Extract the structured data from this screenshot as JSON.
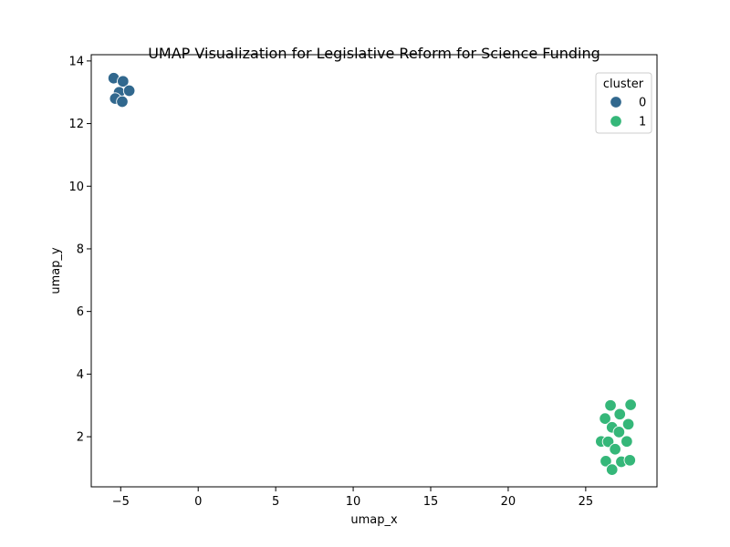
{
  "chart_data": {
    "type": "scatter",
    "title": "UMAP Visualization for Legislative Reform for Science Funding",
    "xlabel": "umap_x",
    "ylabel": "umap_y",
    "xlim": [
      -6.9,
      29.6
    ],
    "ylim": [
      0.4,
      14.2
    ],
    "xticks": [
      -5,
      0,
      5,
      10,
      15,
      20,
      25
    ],
    "xtick_labels": [
      "−5",
      "0",
      "5",
      "10",
      "15",
      "20",
      "25"
    ],
    "yticks": [
      2,
      4,
      6,
      8,
      10,
      12,
      14
    ],
    "ytick_labels": [
      "2",
      "4",
      "6",
      "8",
      "10",
      "12",
      "14"
    ],
    "grid": false,
    "legend": {
      "title": "cluster",
      "placement": "top-right",
      "entries": [
        {
          "label": "0",
          "color": "#31688e"
        },
        {
          "label": "1",
          "color": "#35b779"
        }
      ]
    },
    "series": [
      {
        "name": "0",
        "color": "#31688e",
        "points": [
          {
            "x": -5.45,
            "y": 13.45
          },
          {
            "x": -4.85,
            "y": 13.35
          },
          {
            "x": -5.1,
            "y": 13.0
          },
          {
            "x": -4.45,
            "y": 13.05
          },
          {
            "x": -5.35,
            "y": 12.8
          },
          {
            "x": -4.9,
            "y": 12.7
          }
        ]
      },
      {
        "name": "1",
        "color": "#35b779",
        "points": [
          {
            "x": 26.6,
            "y": 3.0
          },
          {
            "x": 27.9,
            "y": 3.02
          },
          {
            "x": 27.2,
            "y": 2.72
          },
          {
            "x": 26.25,
            "y": 2.58
          },
          {
            "x": 27.75,
            "y": 2.4
          },
          {
            "x": 26.7,
            "y": 2.3
          },
          {
            "x": 27.15,
            "y": 2.15
          },
          {
            "x": 26.0,
            "y": 1.85
          },
          {
            "x": 26.45,
            "y": 1.84
          },
          {
            "x": 27.65,
            "y": 1.85
          },
          {
            "x": 26.9,
            "y": 1.6
          },
          {
            "x": 26.3,
            "y": 1.22
          },
          {
            "x": 27.3,
            "y": 1.2
          },
          {
            "x": 27.85,
            "y": 1.25
          },
          {
            "x": 26.7,
            "y": 0.95
          }
        ]
      }
    ]
  }
}
